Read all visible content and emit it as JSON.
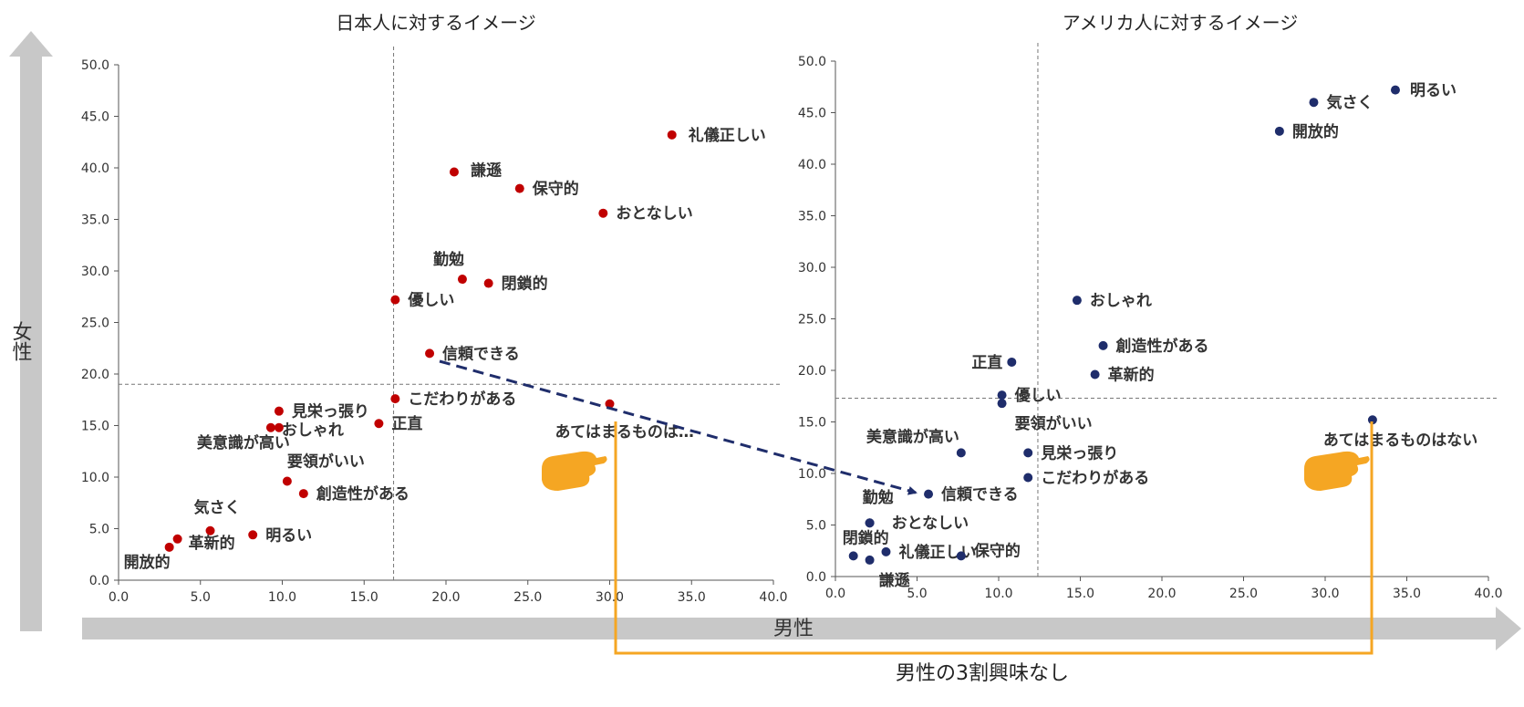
{
  "axis_label_x": "男性",
  "axis_label_y": "女性",
  "callout": "男性の3割興味なし",
  "colors": {
    "japan": "#c00000",
    "america": "#1f2d6b",
    "arrow": "#1f2d6b",
    "bracket": "#f5a623",
    "hand": "#f5a623",
    "big_arrow": "#c8c8c8"
  },
  "chart_data": [
    {
      "type": "scatter",
      "title": "日本人に対するイメージ",
      "xlim": [
        0,
        40
      ],
      "ylim": [
        0,
        50
      ],
      "xticks": [
        "0.0",
        "5.0",
        "10.0",
        "15.0",
        "20.0",
        "25.0",
        "30.0",
        "35.0",
        "40.0"
      ],
      "yticks": [
        "0.0",
        "5.0",
        "10.0",
        "15.0",
        "20.0",
        "25.0",
        "30.0",
        "35.0",
        "40.0",
        "45.0",
        "50.0"
      ],
      "ref_x": 16.8,
      "ref_y": 19.0,
      "points": [
        {
          "label": "礼儀正しい",
          "x": 33.8,
          "y": 43.2
        },
        {
          "label": "謙遜",
          "x": 20.5,
          "y": 39.6
        },
        {
          "label": "保守的",
          "x": 24.5,
          "y": 38.0
        },
        {
          "label": "おとなしい",
          "x": 29.6,
          "y": 35.6
        },
        {
          "label": "勤勉",
          "x": 21.0,
          "y": 29.2
        },
        {
          "label": "閉鎖的",
          "x": 22.6,
          "y": 28.8
        },
        {
          "label": "優しい",
          "x": 16.9,
          "y": 27.2
        },
        {
          "label": "信頼できる",
          "x": 19.0,
          "y": 22.0
        },
        {
          "label": "こだわりがある",
          "x": 16.9,
          "y": 17.6
        },
        {
          "label": "あてはまるものは…",
          "x": 30.0,
          "y": 17.1
        },
        {
          "label": "見栄っ張り",
          "x": 9.8,
          "y": 16.4
        },
        {
          "label": "正直",
          "x": 15.9,
          "y": 15.2
        },
        {
          "label": "おしゃれ",
          "x": 9.3,
          "y": 14.8
        },
        {
          "label": "美意識が高い",
          "x": 9.8,
          "y": 14.8
        },
        {
          "label": "要領がいい",
          "x": 10.3,
          "y": 9.6
        },
        {
          "label": "創造性がある",
          "x": 11.3,
          "y": 8.4
        },
        {
          "label": "気さく",
          "x": 5.6,
          "y": 4.8
        },
        {
          "label": "明るい",
          "x": 8.2,
          "y": 4.4
        },
        {
          "label": "革新的",
          "x": 3.6,
          "y": 4.0
        },
        {
          "label": "開放的",
          "x": 3.1,
          "y": 3.2
        }
      ]
    },
    {
      "type": "scatter",
      "title": "アメリカ人に対するイメージ",
      "xlim": [
        0,
        40
      ],
      "ylim": [
        0,
        50
      ],
      "xticks": [
        "0.0",
        "5.0",
        "10.0",
        "15.0",
        "20.0",
        "25.0",
        "30.0",
        "35.0",
        "40.0"
      ],
      "yticks": [
        "0.0",
        "5.0",
        "10.0",
        "15.0",
        "20.0",
        "25.0",
        "30.0",
        "35.0",
        "40.0",
        "45.0",
        "50.0"
      ],
      "ref_x": 12.4,
      "ref_y": 17.3,
      "points": [
        {
          "label": "明るい",
          "x": 34.3,
          "y": 47.2
        },
        {
          "label": "気さく",
          "x": 29.3,
          "y": 46.0
        },
        {
          "label": "開放的",
          "x": 27.2,
          "y": 43.2
        },
        {
          "label": "おしゃれ",
          "x": 14.8,
          "y": 26.8
        },
        {
          "label": "創造性がある",
          "x": 16.4,
          "y": 22.4
        },
        {
          "label": "正直",
          "x": 10.8,
          "y": 20.8
        },
        {
          "label": "革新的",
          "x": 15.9,
          "y": 19.6
        },
        {
          "label": "優しい",
          "x": 10.2,
          "y": 17.6
        },
        {
          "label": "要領がいい",
          "x": 10.2,
          "y": 16.8
        },
        {
          "label": "あてはまるものはない",
          "x": 32.9,
          "y": 15.2
        },
        {
          "label": "美意識が高い",
          "x": 7.7,
          "y": 12.0
        },
        {
          "label": "見栄っ張り",
          "x": 11.8,
          "y": 12.0
        },
        {
          "label": "こだわりがある",
          "x": 11.8,
          "y": 9.6
        },
        {
          "label": "信頼できる",
          "x": 5.7,
          "y": 8.0
        },
        {
          "label": "勤勉",
          "x": 2.1,
          "y": 5.2
        },
        {
          "label": "おとなしい",
          "x": 2.1,
          "y": 5.2
        },
        {
          "label": "礼儀正しい",
          "x": 3.1,
          "y": 2.4
        },
        {
          "label": "閉鎖的",
          "x": 1.1,
          "y": 2.0
        },
        {
          "label": "保守的",
          "x": 7.7,
          "y": 2.0
        },
        {
          "label": "謙遜",
          "x": 2.1,
          "y": 1.6
        }
      ]
    }
  ]
}
